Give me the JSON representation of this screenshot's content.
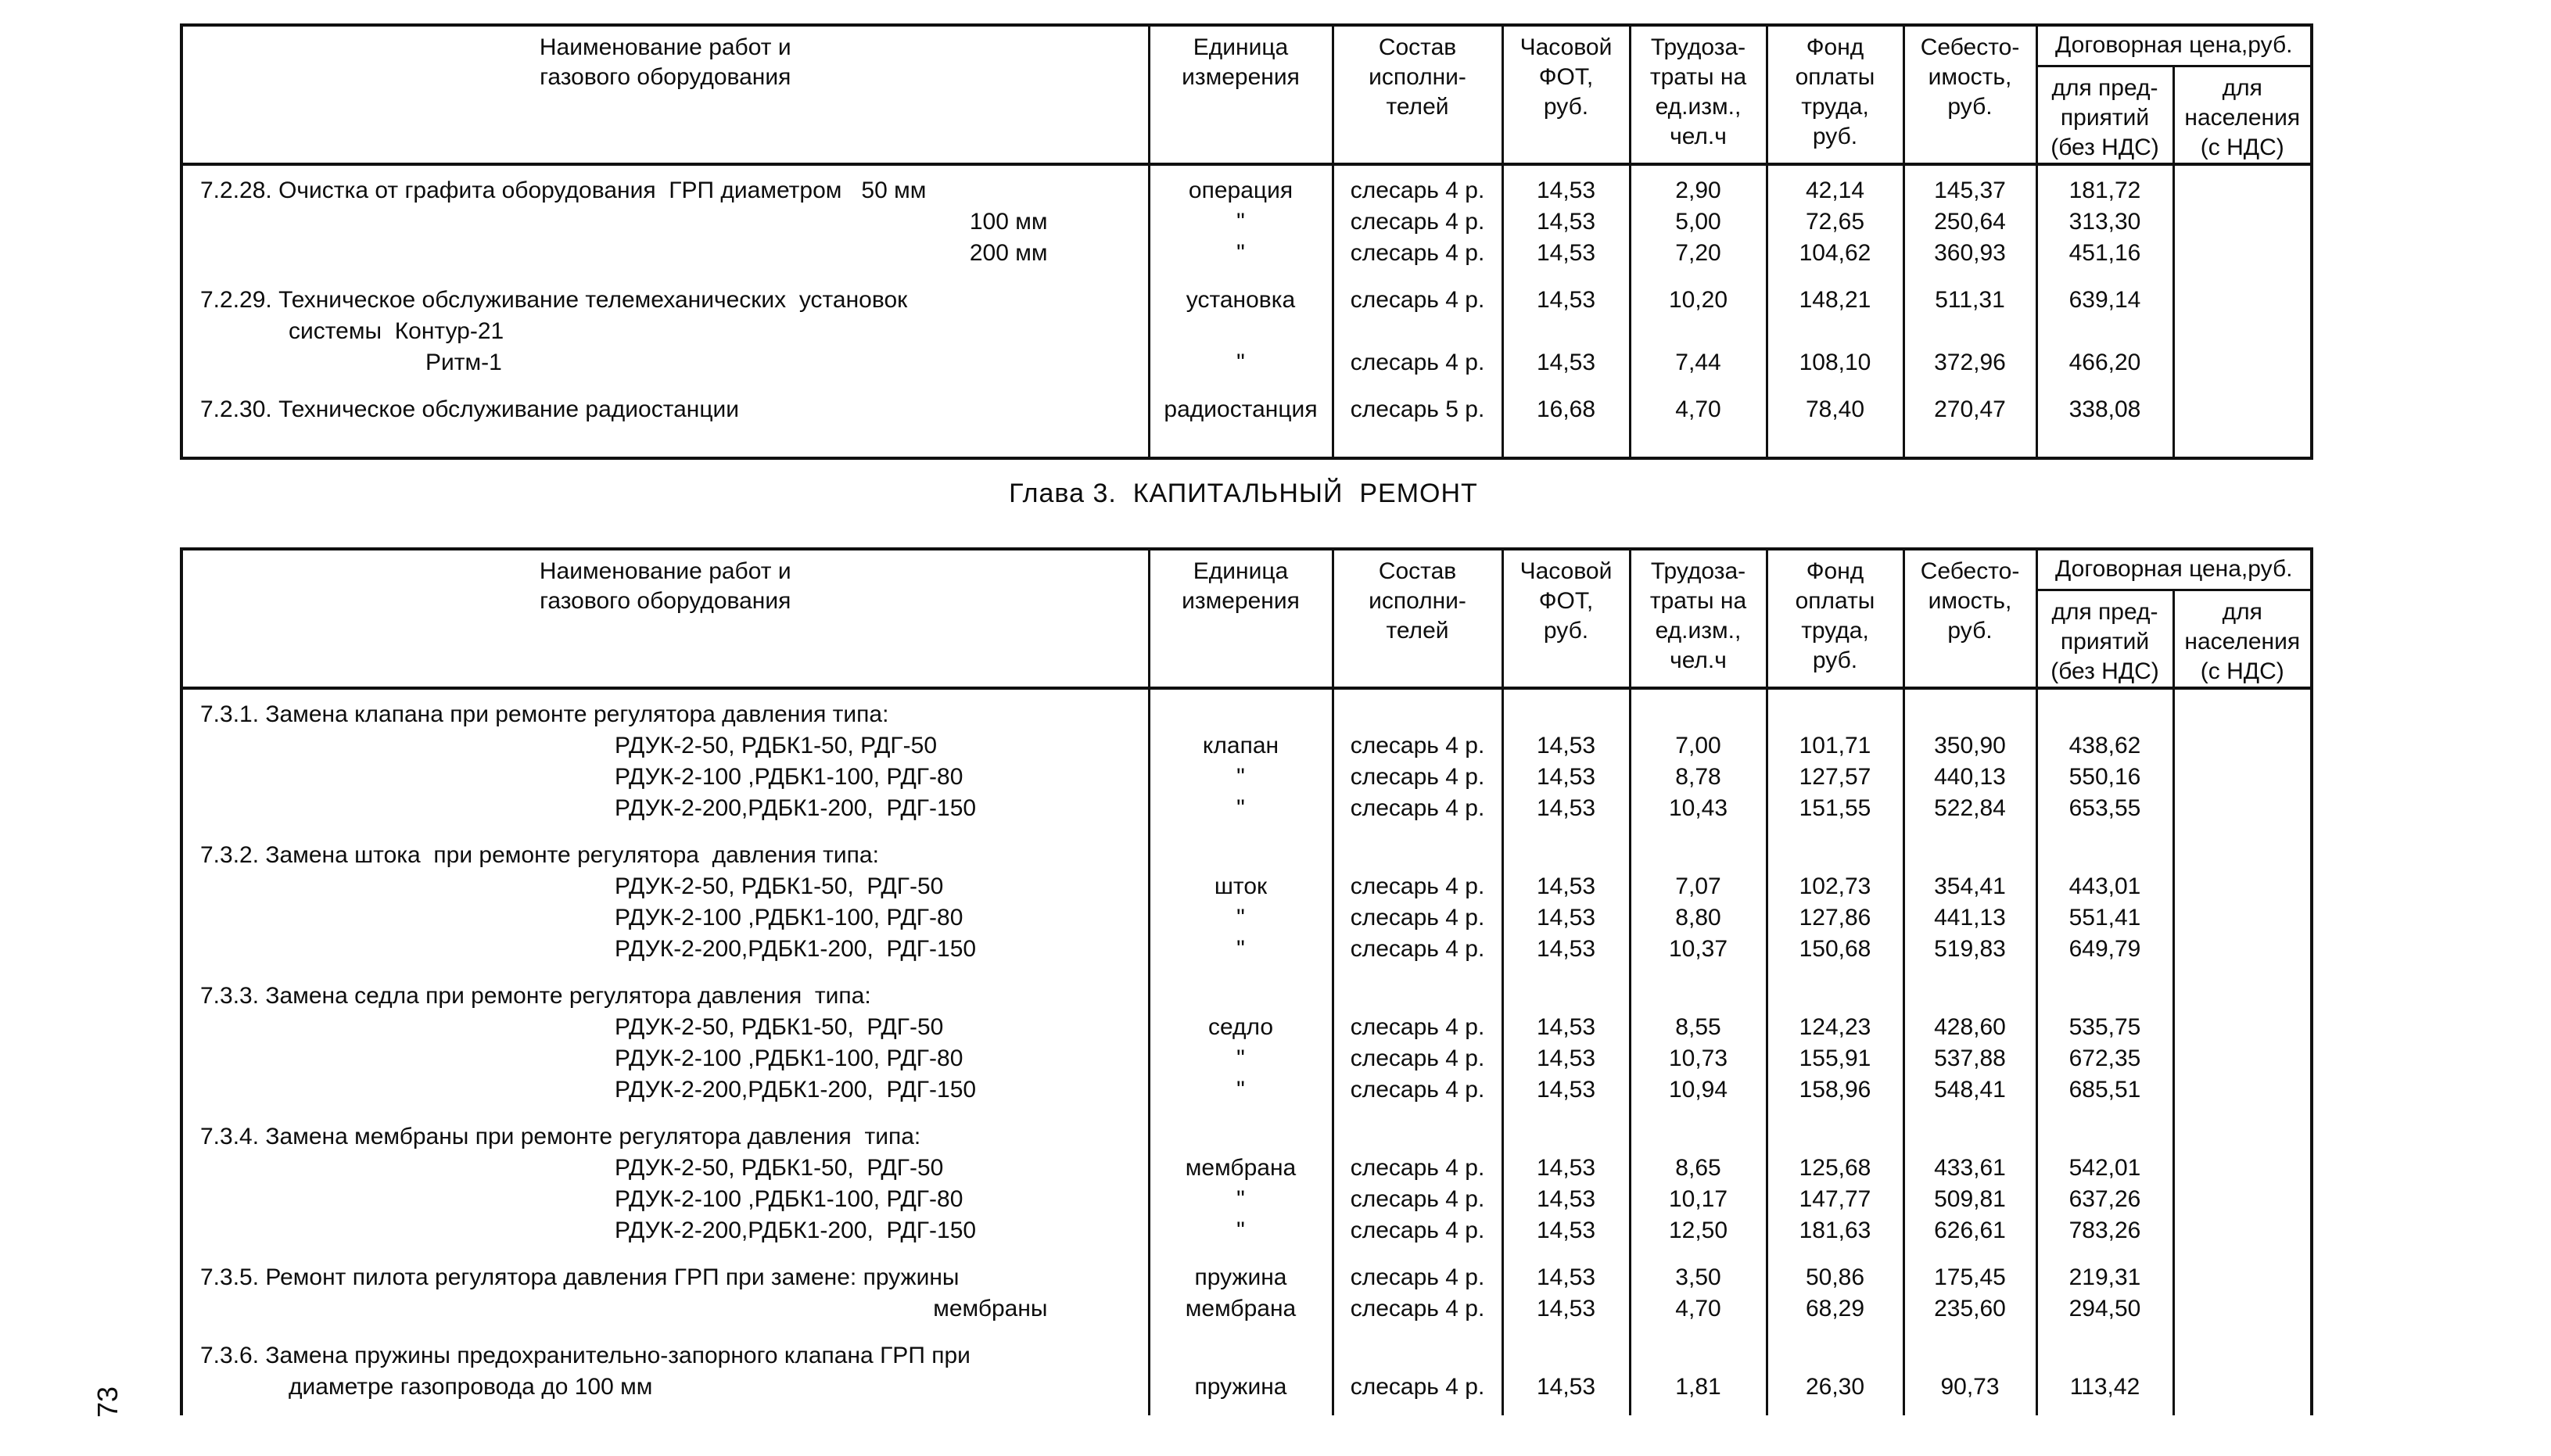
{
  "page": {
    "chapter_title": "Глава 3.  КАПИТАЛЬНЫЙ  РЕМОНТ",
    "page_number": "73"
  },
  "header": {
    "name": "Наименование работ и\nгазового оборудования",
    "unit": "Единица\nизмерения",
    "crew": "Состав\nисполни-\nтелей",
    "fot": "Часовой\nФОТ,\nруб.",
    "labor": "Трудоза-\nтраты на\nед.изм.,\nчел.ч",
    "fund": "Фонд\nоплаты\nтруда,\nруб.",
    "cost": "Себесто-\nимость,\nруб.",
    "price_group": "Договорная цена,руб.",
    "price_ent": "для пред-\nприятий\n(без НДС)",
    "price_pop": "для\nнаселения\n(с НДС)"
  },
  "table1": {
    "rows": [
      {
        "t": "head",
        "name": "7.2.28. Очистка от графита оборудования  ГРП диаметром   50 мм",
        "unit": "операция",
        "crew": "слесарь 4 р.",
        "fot": "14,53",
        "labor": "2,90",
        "fund": "42,14",
        "cost": "145,37",
        "ent": "181,72",
        "pop": ""
      },
      {
        "t": "size",
        "name": "100 мм",
        "unit": "\"",
        "crew": "слесарь 4 р.",
        "fot": "14,53",
        "labor": "5,00",
        "fund": "72,65",
        "cost": "250,64",
        "ent": "313,30",
        "pop": ""
      },
      {
        "t": "size",
        "name": "200 мм",
        "unit": "\"",
        "crew": "слесарь 4 р.",
        "fot": "14,53",
        "labor": "7,20",
        "fund": "104,62",
        "cost": "360,93",
        "ent": "451,16",
        "pop": ""
      },
      {
        "t": "head",
        "name": "7.2.29. Техническое обслуживание телемеханических  установок",
        "unit": "установка",
        "crew": "слесарь 4 р.",
        "fot": "14,53",
        "labor": "10,20",
        "fund": "148,21",
        "cost": "511,31",
        "ent": "639,14",
        "pop": ""
      },
      {
        "t": "cont",
        "name": "системы  Контур-21",
        "unit": "",
        "crew": "",
        "fot": "",
        "labor": "",
        "fund": "",
        "cost": "",
        "ent": "",
        "pop": ""
      },
      {
        "t": "cont2",
        "name": "Ритм-1",
        "unit": "\"",
        "crew": "слесарь 4 р.",
        "fot": "14,53",
        "labor": "7,44",
        "fund": "108,10",
        "cost": "372,96",
        "ent": "466,20",
        "pop": ""
      },
      {
        "t": "head",
        "name": "7.2.30. Техническое обслуживание радиостанции",
        "unit": "радиостанция",
        "crew": "слесарь 5 р.",
        "fot": "16,68",
        "labor": "4,70",
        "fund": "78,40",
        "cost": "270,47",
        "ent": "338,08",
        "pop": ""
      }
    ]
  },
  "table2": {
    "rows": [
      {
        "t": "head",
        "name": "7.3.1. Замена клапана при ремонте регулятора давления типа:",
        "unit": "",
        "crew": "",
        "fot": "",
        "labor": "",
        "fund": "",
        "cost": "",
        "ent": "",
        "pop": ""
      },
      {
        "t": "model",
        "name": "РДУК-2-50, РДБК1-50, РДГ-50",
        "unit": "клапан",
        "crew": "слесарь 4 р.",
        "fot": "14,53",
        "labor": "7,00",
        "fund": "101,71",
        "cost": "350,90",
        "ent": "438,62",
        "pop": ""
      },
      {
        "t": "model",
        "name": "РДУК-2-100 ,РДБК1-100, РДГ-80",
        "unit": "\"",
        "crew": "слесарь 4 р.",
        "fot": "14,53",
        "labor": "8,78",
        "fund": "127,57",
        "cost": "440,13",
        "ent": "550,16",
        "pop": ""
      },
      {
        "t": "model",
        "name": "РДУК-2-200,РДБК1-200,  РДГ-150",
        "unit": "\"",
        "crew": "слесарь 4 р.",
        "fot": "14,53",
        "labor": "10,43",
        "fund": "151,55",
        "cost": "522,84",
        "ent": "653,55",
        "pop": ""
      },
      {
        "t": "head",
        "name": "7.3.2. Замена штока  при ремонте регулятора  давления типа:",
        "unit": "",
        "crew": "",
        "fot": "",
        "labor": "",
        "fund": "",
        "cost": "",
        "ent": "",
        "pop": ""
      },
      {
        "t": "model",
        "name": "РДУК-2-50, РДБК1-50,  РДГ-50",
        "unit": "шток",
        "crew": "слесарь 4 р.",
        "fot": "14,53",
        "labor": "7,07",
        "fund": "102,73",
        "cost": "354,41",
        "ent": "443,01",
        "pop": ""
      },
      {
        "t": "model",
        "name": "РДУК-2-100 ,РДБК1-100, РДГ-80",
        "unit": "\"",
        "crew": "слесарь 4 р.",
        "fot": "14,53",
        "labor": "8,80",
        "fund": "127,86",
        "cost": "441,13",
        "ent": "551,41",
        "pop": ""
      },
      {
        "t": "model",
        "name": "РДУК-2-200,РДБК1-200,  РДГ-150",
        "unit": "\"",
        "crew": "слесарь 4 р.",
        "fot": "14,53",
        "labor": "10,37",
        "fund": "150,68",
        "cost": "519,83",
        "ent": "649,79",
        "pop": ""
      },
      {
        "t": "head",
        "name": "7.3.3. Замена седла при ремонте регулятора давления  типа:",
        "unit": "",
        "crew": "",
        "fot": "",
        "labor": "",
        "fund": "",
        "cost": "",
        "ent": "",
        "pop": ""
      },
      {
        "t": "model",
        "name": "РДУК-2-50, РДБК1-50,  РДГ-50",
        "unit": "седло",
        "crew": "слесарь 4 р.",
        "fot": "14,53",
        "labor": "8,55",
        "fund": "124,23",
        "cost": "428,60",
        "ent": "535,75",
        "pop": ""
      },
      {
        "t": "model",
        "name": "РДУК-2-100 ,РДБК1-100, РДГ-80",
        "unit": "\"",
        "crew": "слесарь 4 р.",
        "fot": "14,53",
        "labor": "10,73",
        "fund": "155,91",
        "cost": "537,88",
        "ent": "672,35",
        "pop": ""
      },
      {
        "t": "model",
        "name": "РДУК-2-200,РДБК1-200,  РДГ-150",
        "unit": "\"",
        "crew": "слесарь 4 р.",
        "fot": "14,53",
        "labor": "10,94",
        "fund": "158,96",
        "cost": "548,41",
        "ent": "685,51",
        "pop": ""
      },
      {
        "t": "head",
        "name": "7.3.4. Замена мембраны при ремонте регулятора давления  типа:",
        "unit": "",
        "crew": "",
        "fot": "",
        "labor": "",
        "fund": "",
        "cost": "",
        "ent": "",
        "pop": ""
      },
      {
        "t": "model",
        "name": "РДУК-2-50, РДБК1-50,  РДГ-50",
        "unit": "мембрана",
        "crew": "слесарь 4 р.",
        "fot": "14,53",
        "labor": "8,65",
        "fund": "125,68",
        "cost": "433,61",
        "ent": "542,01",
        "pop": ""
      },
      {
        "t": "model",
        "name": "РДУК-2-100 ,РДБК1-100, РДГ-80",
        "unit": "\"",
        "crew": "слесарь 4 р.",
        "fot": "14,53",
        "labor": "10,17",
        "fund": "147,77",
        "cost": "509,81",
        "ent": "637,26",
        "pop": ""
      },
      {
        "t": "model",
        "name": "РДУК-2-200,РДБК1-200,  РДГ-150",
        "unit": "\"",
        "crew": "слесарь 4 р.",
        "fot": "14,53",
        "labor": "12,50",
        "fund": "181,63",
        "cost": "626,61",
        "ent": "783,26",
        "pop": ""
      },
      {
        "t": "head",
        "name": "7.3.5. Ремонт пилота регулятора давления ГРП при замене: пружины",
        "unit": "пружина",
        "crew": "слесарь 4 р.",
        "fot": "14,53",
        "labor": "3,50",
        "fund": "50,86",
        "cost": "175,45",
        "ent": "219,31",
        "pop": ""
      },
      {
        "t": "size",
        "name": "мембраны",
        "unit": "мембрана",
        "crew": "слесарь 4 р.",
        "fot": "14,53",
        "labor": "4,70",
        "fund": "68,29",
        "cost": "235,60",
        "ent": "294,50",
        "pop": ""
      },
      {
        "t": "head",
        "name": "7.3.6. Замена пружины предохранительно-запорного клапана ГРП при",
        "unit": "",
        "crew": "",
        "fot": "",
        "labor": "",
        "fund": "",
        "cost": "",
        "ent": "",
        "pop": ""
      },
      {
        "t": "cont",
        "name": "диаметре газопровода до 100 мм",
        "unit": "пружина",
        "crew": "слесарь 4 р.",
        "fot": "14,53",
        "labor": "1,81",
        "fund": "26,30",
        "cost": "90,73",
        "ent": "113,42",
        "pop": ""
      }
    ]
  }
}
